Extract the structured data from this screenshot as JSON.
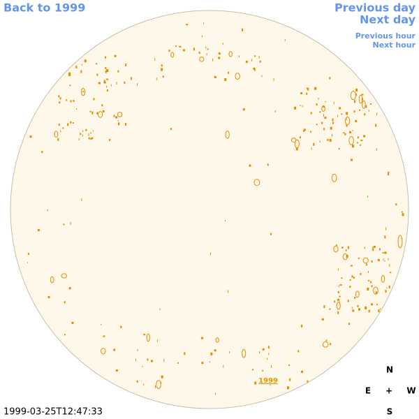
{
  "nav": {
    "back": "Back to 1999",
    "previous_day": "Previous day",
    "next_day": "Next day",
    "previous_hour": "Previous hour",
    "next_hour": "Next hour"
  },
  "disk_label": "1999",
  "compass": {
    "north": "N",
    "east": "E",
    "center": "+",
    "west": "W",
    "south": "S"
  },
  "timestamp": "1999-03-25T12:47:33"
}
